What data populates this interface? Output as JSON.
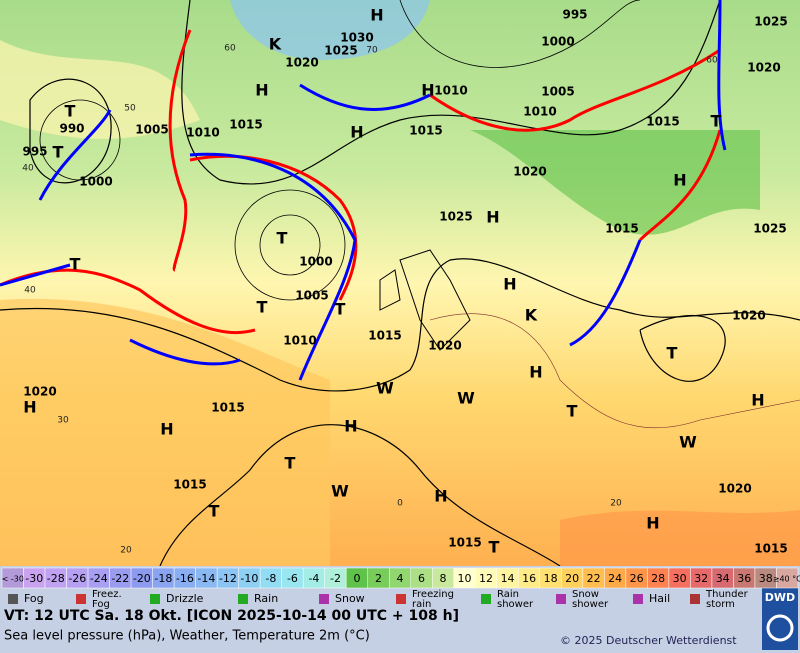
{
  "map": {
    "labels": [
      "H",
      "1030",
      "1025",
      "K",
      "1020",
      "H",
      "1015",
      "1010",
      "1005",
      "990",
      "995",
      "T",
      "1000",
      "T",
      "995",
      "1000",
      "1010",
      "H",
      "H",
      "1015",
      "1005",
      "1010",
      "1020",
      "1025",
      "H",
      "H",
      "1025",
      "1020",
      "1015",
      "T",
      "H",
      "1025",
      "1015",
      "T",
      "1000",
      "1005",
      "T",
      "1010",
      "T",
      "1015",
      "1020",
      "H",
      "T",
      "T",
      "1020",
      "H",
      "1020",
      "H",
      "1015",
      "H",
      "T",
      "H",
      "1015",
      "T",
      "H",
      "1020",
      "H",
      "1015",
      "T",
      "1015",
      "T",
      "K",
      "W",
      "W",
      "W",
      "W",
      "60",
      "70",
      "50",
      "40",
      "60",
      "40",
      "30",
      "20",
      "0",
      "20"
    ]
  },
  "colorbar": {
    "items": [
      {
        "label": "< -30",
        "color": "#b39bd9"
      },
      {
        "label": "-30",
        "color": "#c9a3f0"
      },
      {
        "label": "-28",
        "color": "#c1a2f2"
      },
      {
        "label": "-26",
        "color": "#b7a0f2"
      },
      {
        "label": "-24",
        "color": "#a89ff2"
      },
      {
        "label": "-22",
        "color": "#9a9cf0"
      },
      {
        "label": "-20",
        "color": "#8c9af0"
      },
      {
        "label": "-18",
        "color": "#8aa4f2"
      },
      {
        "label": "-16",
        "color": "#89aef2"
      },
      {
        "label": "-14",
        "color": "#8ab8f2"
      },
      {
        "label": "-12",
        "color": "#8cc4f4"
      },
      {
        "label": "-10",
        "color": "#8ed0f4"
      },
      {
        "label": "-8",
        "color": "#92dcf4"
      },
      {
        "label": "-6",
        "color": "#98e6f0"
      },
      {
        "label": "-4",
        "color": "#a4ece6"
      },
      {
        "label": "-2",
        "color": "#b0f0da"
      },
      {
        "label": "0",
        "color": "#5fc24a"
      },
      {
        "label": "2",
        "color": "#78cc5a"
      },
      {
        "label": "4",
        "color": "#92d670"
      },
      {
        "label": "6",
        "color": "#acdf86"
      },
      {
        "label": "8",
        "color": "#c8e99c"
      },
      {
        "label": "10",
        "color": "#ffffcf"
      },
      {
        "label": "12",
        "color": "#fffbb8"
      },
      {
        "label": "14",
        "color": "#fff49f"
      },
      {
        "label": "16",
        "color": "#ffec88"
      },
      {
        "label": "18",
        "color": "#ffe070"
      },
      {
        "label": "20",
        "color": "#ffd05c"
      },
      {
        "label": "22",
        "color": "#ffbe4f"
      },
      {
        "label": "24",
        "color": "#ffaa48"
      },
      {
        "label": "26",
        "color": "#ff9548"
      },
      {
        "label": "28",
        "color": "#ff8250"
      },
      {
        "label": "30",
        "color": "#f57060"
      },
      {
        "label": "32",
        "color": "#e66a6a"
      },
      {
        "label": "34",
        "color": "#d66a70"
      },
      {
        "label": "36",
        "color": "#c87870"
      },
      {
        "label": "38",
        "color": "#b88a80"
      },
      {
        "label": "≥40 °C",
        "color": "#d8a8a0"
      }
    ]
  },
  "legend": {
    "items": [
      {
        "lines": [
          "Fog"
        ]
      },
      {
        "lines": [
          "Freez.",
          "Fog"
        ]
      },
      {
        "lines": [
          "Drizzle"
        ]
      },
      {
        "lines": [
          "Rain"
        ]
      },
      {
        "lines": [
          "Snow"
        ]
      },
      {
        "lines": [
          "Freezing",
          "rain"
        ]
      },
      {
        "lines": [
          "Rain",
          "shower"
        ]
      },
      {
        "lines": [
          "Snow",
          "shower"
        ]
      },
      {
        "lines": [
          "Hail"
        ]
      },
      {
        "lines": [
          "Thunder",
          "storm"
        ]
      }
    ]
  },
  "footer": {
    "valid_time": "VT: 12 UTC Sa.   18 Okt. [ICON 2025-10-14  00 UTC + 108 h]",
    "description": "Sea level pressure (hPa), Weather, Temperature 2m (°C)",
    "copyright": "© 2025 Deutscher Wetterdienst",
    "logo": "DWD"
  }
}
